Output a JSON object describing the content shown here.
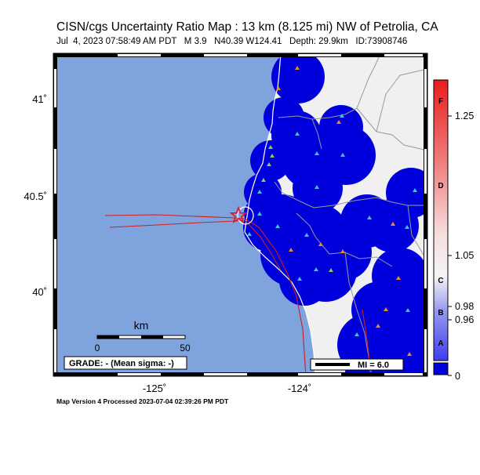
{
  "map": {
    "title": "CISN/cgs Uncertainty Ratio Map : 13 km (8.125 mi) NW of Petrolia, CA",
    "subtitle": "Jul  4, 2023 07:58:49 AM PDT   M 3.9   N40.39 W124.41   Depth: 29.9km   ID:73908746",
    "footer": "Map Version 4 Processed 2023-07-04 02:39:26 PM PDT",
    "lat_ticks": [
      "41˚",
      "40.5˚",
      "40˚"
    ],
    "lon_ticks": [
      "-125˚",
      "-124˚"
    ],
    "scale_bar": {
      "unit": "km",
      "start": "0",
      "end": "50"
    },
    "grade_label": "GRADE: - (Mean sigma: -)",
    "mi_label": "MI = 6.0",
    "colors": {
      "ocean": "#7fa4dd",
      "land": "#f0f0f0",
      "low_uncertainty": "#0000dd",
      "fault": "#cc1f1f",
      "epicenter": "#e8102a",
      "station_cyan": "#3ec6d8",
      "station_orange": "#ee8a2a",
      "station_green": "#7cd35a"
    }
  },
  "legend": {
    "letters": [
      "F",
      "D",
      "C",
      "B",
      "A"
    ],
    "values": [
      "1.25",
      "1.05",
      "0.98",
      "0.96",
      "0"
    ]
  }
}
